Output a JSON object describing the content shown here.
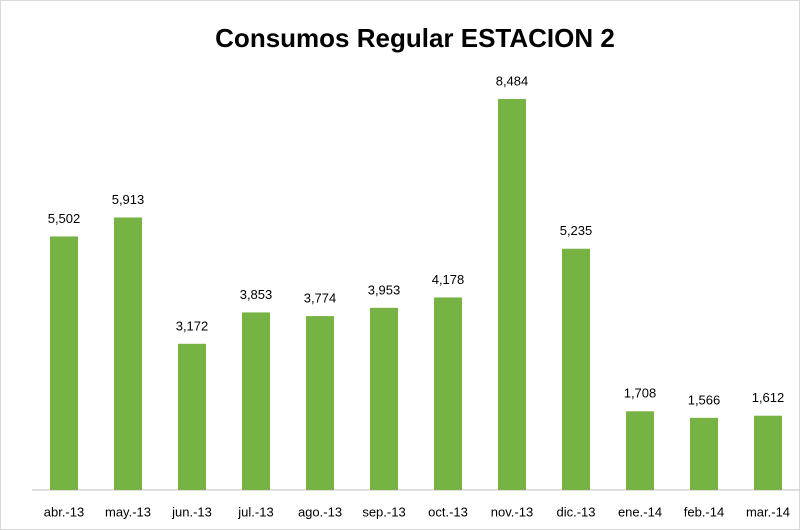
{
  "chart_data": {
    "type": "bar",
    "title": "Consumos Regular ESTACION 2",
    "categories": [
      "abr.-13",
      "may.-13",
      "jun.-13",
      "jul.-13",
      "ago.-13",
      "sep.-13",
      "oct.-13",
      "nov.-13",
      "dic.-13",
      "ene.-14",
      "feb.-14",
      "mar.-14"
    ],
    "values": [
      5502,
      5913,
      3172,
      3853,
      3774,
      3953,
      4178,
      8484,
      5235,
      1708,
      1566,
      1612
    ],
    "value_labels": [
      "5,502",
      "5,913",
      "3,172",
      "3,853",
      "3,774",
      "3,953",
      "4,178",
      "8,484",
      "5,235",
      "1,708",
      "1,566",
      "1,612"
    ],
    "color": "#76b244"
  }
}
